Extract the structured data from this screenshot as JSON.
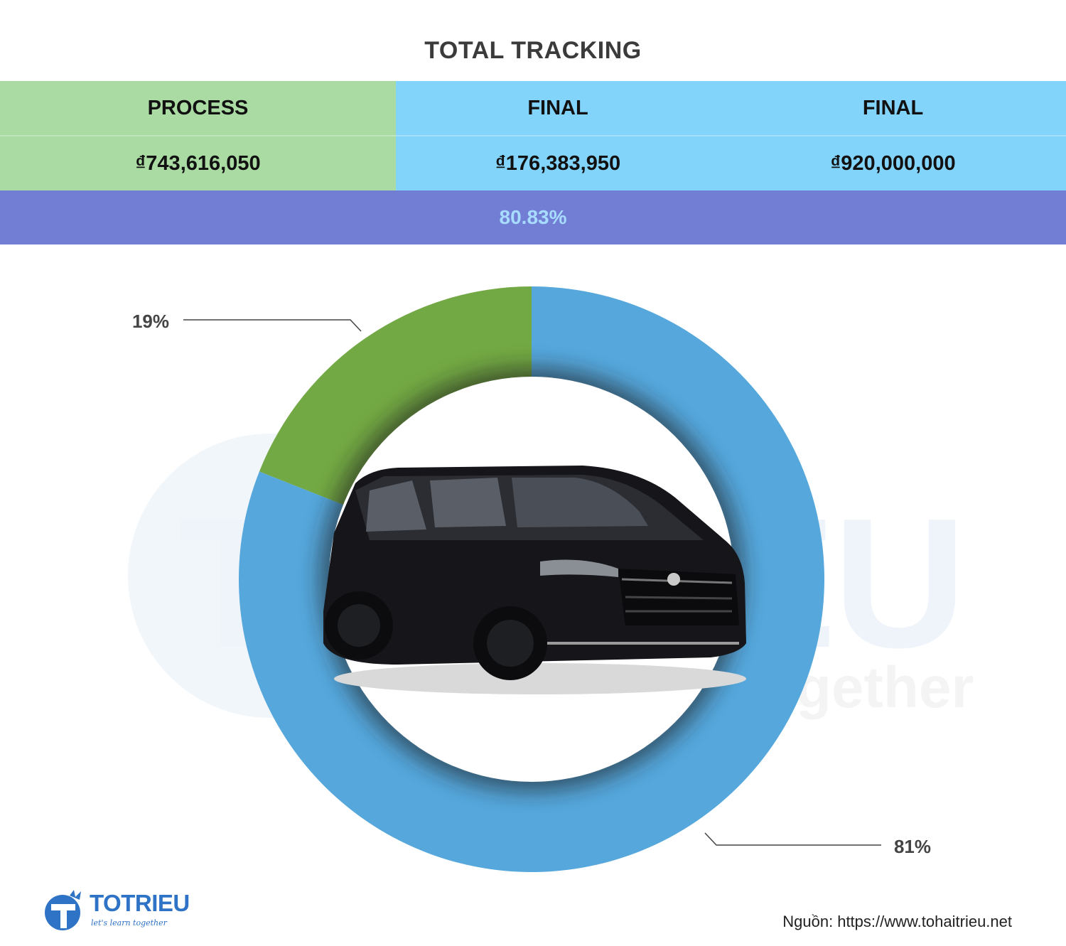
{
  "title": "TOTAL TRACKING",
  "table": {
    "headers": [
      "PROCESS",
      "FINAL",
      "FINAL"
    ],
    "values": [
      "₫743,616,050",
      "₫176,383,950",
      "₫920,000,000"
    ],
    "percent": "80.83%"
  },
  "colors": {
    "process_bg": "#a9dba3",
    "final_bg": "#83d4fb",
    "percent_bg": "#727ed3",
    "percent_text": "#a8dcff",
    "slice_blue": "#55a7dc",
    "slice_green": "#73a944"
  },
  "chart_data": {
    "type": "pie",
    "variant": "donut",
    "slices": [
      {
        "label": "81%",
        "value": 81,
        "color": "#55a7dc"
      },
      {
        "label": "19%",
        "value": 19,
        "color": "#73a944"
      }
    ]
  },
  "watermark": {
    "brand": "TOTRIEU",
    "tagline": "let's learn together"
  },
  "logo": {
    "brand": "TOTRIEU",
    "tagline": "let's learn together"
  },
  "source": {
    "label": "Nguồn:",
    "url": "https://www.tohaitrieu.net"
  }
}
